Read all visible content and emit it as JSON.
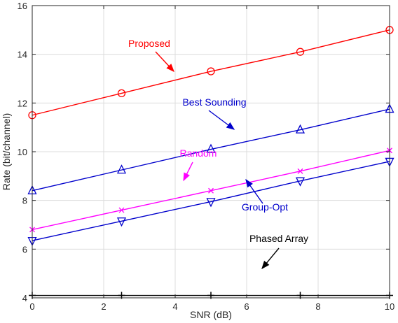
{
  "chart_data": {
    "type": "line",
    "title": "",
    "xlabel": "SNR (dB)",
    "ylabel": "Rate (bit/channel)",
    "xlim": [
      0,
      10
    ],
    "ylim": [
      4,
      16
    ],
    "xticks": [
      0,
      2,
      4,
      6,
      8,
      10
    ],
    "yticks": [
      4,
      6,
      8,
      10,
      12,
      14,
      16
    ],
    "grid": true,
    "legend": "none (series identified by on-plot annotations with arrows)",
    "series": [
      {
        "name": "Proposed",
        "color": "#ff0000",
        "marker": "circle",
        "x": [
          0,
          2.5,
          5,
          7.5,
          10
        ],
        "y": [
          11.5,
          12.4,
          13.3,
          14.1,
          15.0
        ]
      },
      {
        "name": "Best Sounding",
        "color": "#0000cc",
        "marker": "triangle-up",
        "x": [
          0,
          2.5,
          5,
          7.5,
          10
        ],
        "y": [
          8.4,
          9.25,
          10.1,
          10.9,
          11.75
        ]
      },
      {
        "name": "Random",
        "color": "#ff00ff",
        "marker": "x",
        "x": [
          0,
          2.5,
          5,
          7.5,
          10
        ],
        "y": [
          6.8,
          7.6,
          8.4,
          9.2,
          10.05
        ]
      },
      {
        "name": "Group-Opt",
        "color": "#0000cc",
        "marker": "triangle-down",
        "x": [
          0,
          2.5,
          5,
          7.5,
          10
        ],
        "y": [
          6.35,
          7.15,
          7.95,
          8.8,
          9.6
        ]
      },
      {
        "name": "Phased Array",
        "color": "#000000",
        "marker": "plus",
        "x": [
          0,
          2.5,
          5,
          7.5,
          10
        ],
        "y": [
          4.1,
          4.1,
          4.1,
          4.1,
          4.1
        ]
      }
    ]
  }
}
